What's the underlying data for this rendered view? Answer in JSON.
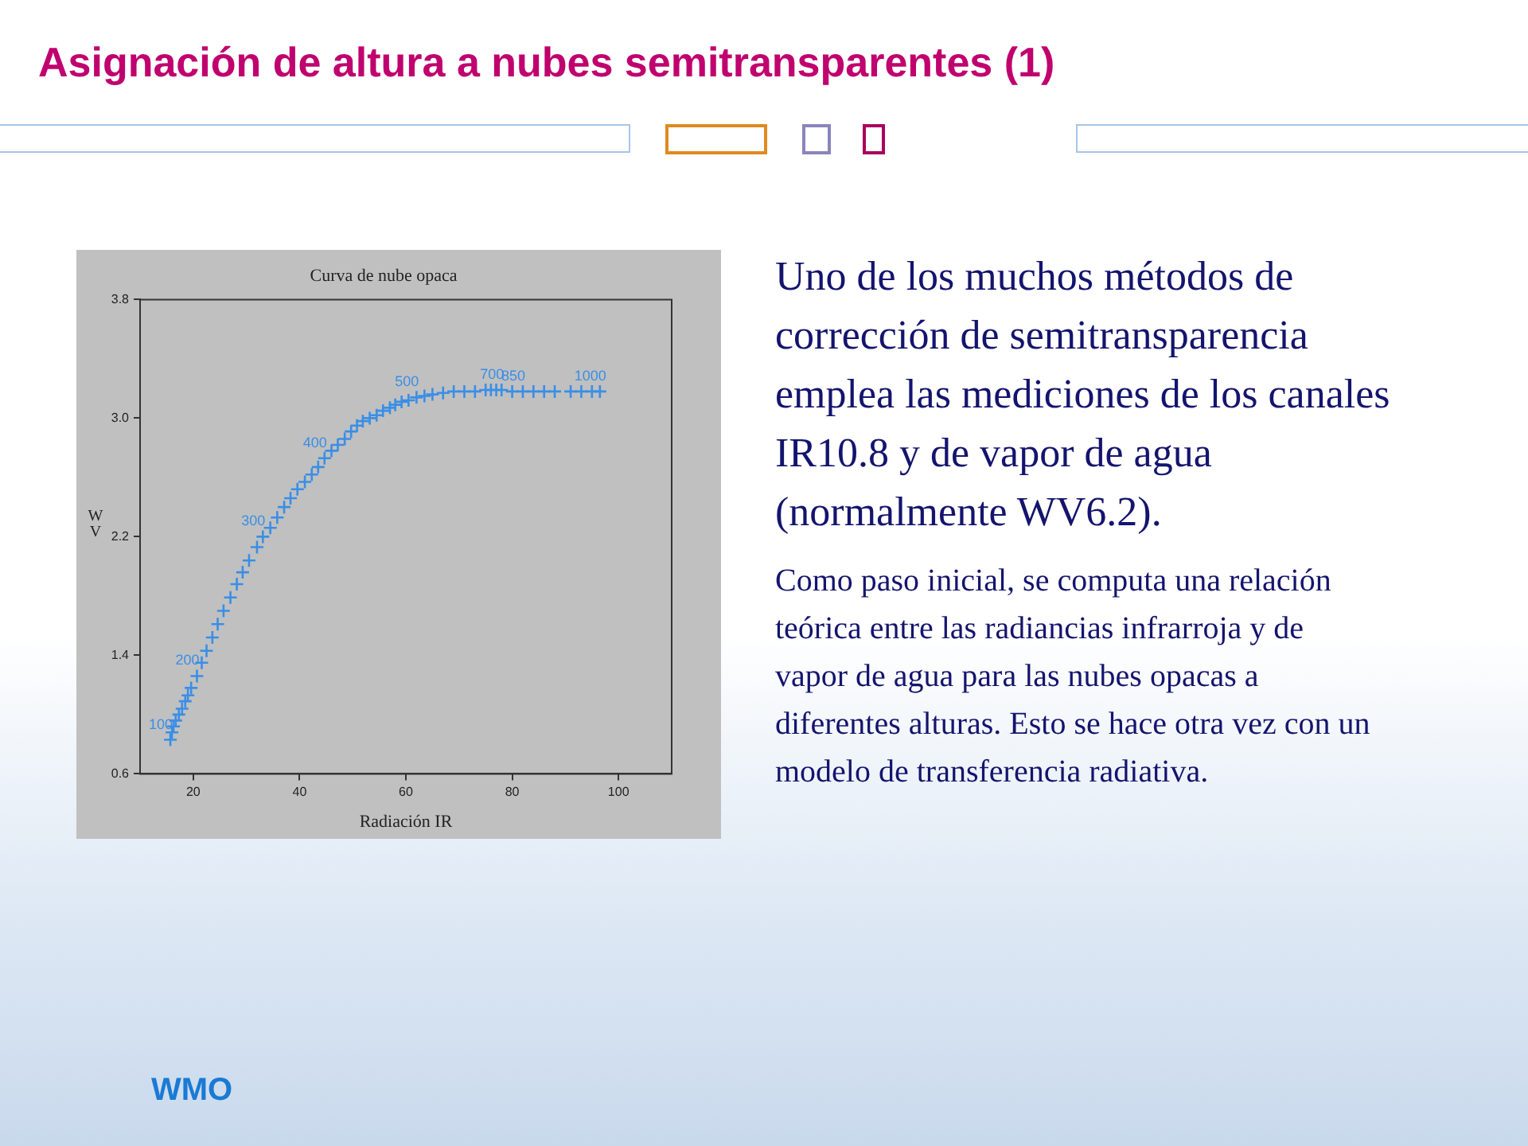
{
  "chart_data": {
    "type": "scatter",
    "title": "Asignación de altura a nubes semitransparentes (1)",
    "subtitle": "Curva de nube opaca",
    "xlabel": "Radiación IR",
    "ylabel": "WV",
    "xlim": [
      10,
      110
    ],
    "xticks": [
      20,
      40,
      60,
      80,
      100
    ],
    "ylim": [
      0.6,
      3.8
    ],
    "yticks": [
      0.6,
      1.4,
      2.2,
      {
        "value": 3.0,
        "label": "3.0"
      },
      3.8
    ],
    "grid": false,
    "legend": false,
    "marker": "cross",
    "series": [
      {
        "color": "#3a8ee6",
        "x": [
          15.7,
          16.0,
          16.3,
          16.7,
          17.3,
          17.9,
          18.5,
          19.0,
          19.6,
          20.7,
          21.6,
          22.5,
          23.6,
          24.6,
          25.7,
          27.0,
          28.2,
          29.3,
          30.5,
          32.0,
          33.1,
          34.5,
          35.8,
          37.1,
          38.3,
          39.6,
          41.0,
          42.3,
          43.5,
          44.7,
          46.0,
          47.2,
          48.5,
          49.7,
          50.8,
          51.9,
          53.2,
          54.5,
          55.7,
          57.0,
          58.0,
          59.2,
          60.5,
          62.0,
          63.5,
          65.0,
          67.0,
          69.0,
          71.0,
          73.0,
          75.0,
          76.0,
          77.0,
          78.0,
          80.0,
          82.0,
          84.0,
          86.0,
          88.0,
          91.0,
          93.0,
          95.0,
          96.5
        ],
        "values": [
          0.83,
          0.88,
          0.92,
          0.96,
          1.0,
          1.04,
          1.09,
          1.13,
          1.18,
          1.26,
          1.35,
          1.43,
          1.52,
          1.61,
          1.7,
          1.79,
          1.88,
          1.96,
          2.04,
          2.13,
          2.2,
          2.26,
          2.33,
          2.4,
          2.46,
          2.52,
          2.57,
          2.62,
          2.67,
          2.73,
          2.78,
          2.82,
          2.86,
          2.91,
          2.95,
          2.98,
          3.0,
          3.02,
          3.05,
          3.07,
          3.09,
          3.11,
          3.12,
          3.14,
          3.15,
          3.16,
          3.17,
          3.18,
          3.18,
          3.18,
          3.19,
          3.19,
          3.19,
          3.19,
          3.18,
          3.18,
          3.18,
          3.18,
          3.18,
          3.18,
          3.18,
          3.18,
          3.18
        ]
      }
    ],
    "annotations": [
      "Uno de los muchos métodos de corrección de semitransparencia emplea las mediciones de los canales IR10.8 y de vapor de agua (normalmente  WV6.2).",
      "Como paso inicial, se computa una relación teórica entre las radiancias infrarroja y de vapor de agua para las nubes opacas a diferentes alturas. Esto se hace otra vez con un modelo de transferencia radiativa.",
      "WMO",
      {
        "text": "100",
        "x": 15.7,
        "y": 0.83
      },
      {
        "text": "200",
        "x": 20.7,
        "y": 1.26
      },
      {
        "text": "300",
        "x": 33.1,
        "y": 2.2
      },
      {
        "text": "400",
        "x": 44.7,
        "y": 2.73
      },
      {
        "text": "500",
        "x": 62.0,
        "y": 3.14
      },
      {
        "text": "700",
        "x": 78.0,
        "y": 3.19
      },
      {
        "text": "850",
        "x": 82.0,
        "y": 3.18
      },
      {
        "text": "1000",
        "x": 96.5,
        "y": 3.18
      }
    ]
  }
}
